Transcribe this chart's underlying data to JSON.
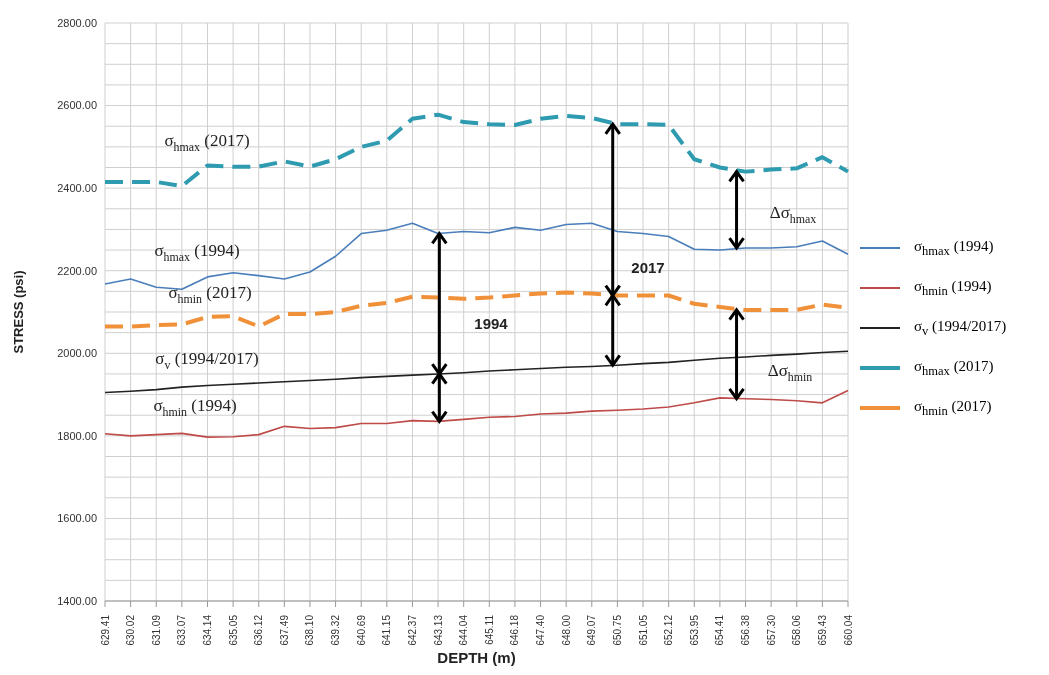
{
  "chart_data": {
    "type": "line",
    "xlabel": "DEPTH (m)",
    "ylabel": "STRESS (psi)",
    "categories": [
      "629.41",
      "630.02",
      "631.09",
      "633.07",
      "634.14",
      "635.05",
      "636.12",
      "637.49",
      "638.10",
      "639.32",
      "640.69",
      "641.15",
      "642.37",
      "643.13",
      "644.04",
      "645.11",
      "646.18",
      "647.40",
      "648.00",
      "649.07",
      "650.75",
      "651.05",
      "652.12",
      "653.95",
      "654.41",
      "656.38",
      "657.30",
      "658.06",
      "659.43",
      "660.04"
    ],
    "series": [
      {
        "name": "σ$_{hmax}$ (1994)",
        "color": "#4a7ebb",
        "line_style": "solid",
        "values": [
          2168,
          2180,
          2160,
          2155,
          2185,
          2195,
          2188,
          2180,
          2197,
          2235,
          2290,
          2298,
          2315,
          2290,
          2295,
          2292,
          2305,
          2298,
          2312,
          2315,
          2295,
          2290,
          2283,
          2252,
          2250,
          2255,
          2255,
          2258,
          2272,
          2240
        ]
      },
      {
        "name": "σ$_{hmin}$ (1994)",
        "color": "#be4b48",
        "line_style": "solid",
        "values": [
          1805,
          1800,
          1803,
          1806,
          1797,
          1798,
          1803,
          1823,
          1818,
          1820,
          1830,
          1830,
          1837,
          1835,
          1840,
          1845,
          1847,
          1853,
          1855,
          1860,
          1862,
          1865,
          1870,
          1880,
          1892,
          1890,
          1888,
          1885,
          1880,
          1910
        ]
      },
      {
        "name": "σ$_{v}$ (1994/2017)",
        "color": "#222222",
        "line_style": "solid",
        "values": [
          1905,
          1908,
          1912,
          1918,
          1922,
          1925,
          1928,
          1931,
          1934,
          1937,
          1941,
          1944,
          1947,
          1950,
          1953,
          1957,
          1960,
          1963,
          1966,
          1968,
          1971,
          1975,
          1978,
          1983,
          1988,
          1991,
          1995,
          1998,
          2002,
          2005
        ]
      },
      {
        "name": "σ$_{hmax}$ (2017)",
        "color": "#2e9bb0",
        "line_style": "dashed",
        "values": [
          2415,
          2415,
          2415,
          2405,
          2455,
          2452,
          2452,
          2465,
          2452,
          2470,
          2500,
          2515,
          2568,
          2578,
          2560,
          2555,
          2553,
          2568,
          2575,
          2570,
          2555,
          2555,
          2553,
          2470,
          2450,
          2440,
          2445,
          2448,
          2475,
          2440
        ]
      },
      {
        "name": "σ$_{hmin}$ (2017)",
        "color": "#f0913a",
        "line_style": "dashed",
        "values": [
          2065,
          2065,
          2068,
          2070,
          2088,
          2090,
          2065,
          2095,
          2095,
          2100,
          2115,
          2122,
          2137,
          2135,
          2132,
          2135,
          2140,
          2145,
          2147,
          2145,
          2140,
          2140,
          2140,
          2120,
          2112,
          2105,
          2105,
          2105,
          2118,
          2110
        ]
      }
    ],
    "ylim": [
      1400,
      2800
    ],
    "yticks": [
      {
        "value": 1400,
        "label": "1400.00"
      },
      {
        "value": 1450,
        "label": null
      },
      {
        "value": 1500,
        "label": null
      },
      {
        "value": 1550,
        "label": null
      },
      {
        "value": 1600,
        "label": "1600.00"
      },
      {
        "value": 1650,
        "label": null
      },
      {
        "value": 1700,
        "label": null
      },
      {
        "value": 1750,
        "label": null
      },
      {
        "value": 1800,
        "label": "1800.00"
      },
      {
        "value": 1850,
        "label": null
      },
      {
        "value": 1900,
        "label": null
      },
      {
        "value": 1950,
        "label": null
      },
      {
        "value": 2000,
        "label": "2000.00"
      },
      {
        "value": 2050,
        "label": null
      },
      {
        "value": 2100,
        "label": null
      },
      {
        "value": 2150,
        "label": null
      },
      {
        "value": 2200,
        "label": "2200.00"
      },
      {
        "value": 2250,
        "label": null
      },
      {
        "value": 2300,
        "label": null
      },
      {
        "value": 2350,
        "label": null
      },
      {
        "value": 2400,
        "label": "2400.00"
      },
      {
        "value": 2450,
        "label": null
      },
      {
        "value": 2500,
        "label": null
      },
      {
        "value": 2550,
        "label": null
      },
      {
        "value": 2600,
        "label": "2600.00"
      },
      {
        "value": 2650,
        "label": null
      },
      {
        "value": 2700,
        "label": null
      },
      {
        "value": 2750,
        "label": null
      },
      {
        "value": 2800,
        "label": "2800.00"
      }
    ],
    "grid": true,
    "legend": "right",
    "marker": "none",
    "annotations": [
      "σ$_{hmax}$ (2017)",
      "σ$_{hmax}$ (1994)",
      "σ$_{hmin}$ (2017)",
      "σ$_{v}$ (1994/2017)",
      "σ$_{hmin}$ (1994)",
      "1994",
      "2017",
      "Δσ$_{hmax}$",
      "Δσ$_{hmin}$"
    ]
  }
}
